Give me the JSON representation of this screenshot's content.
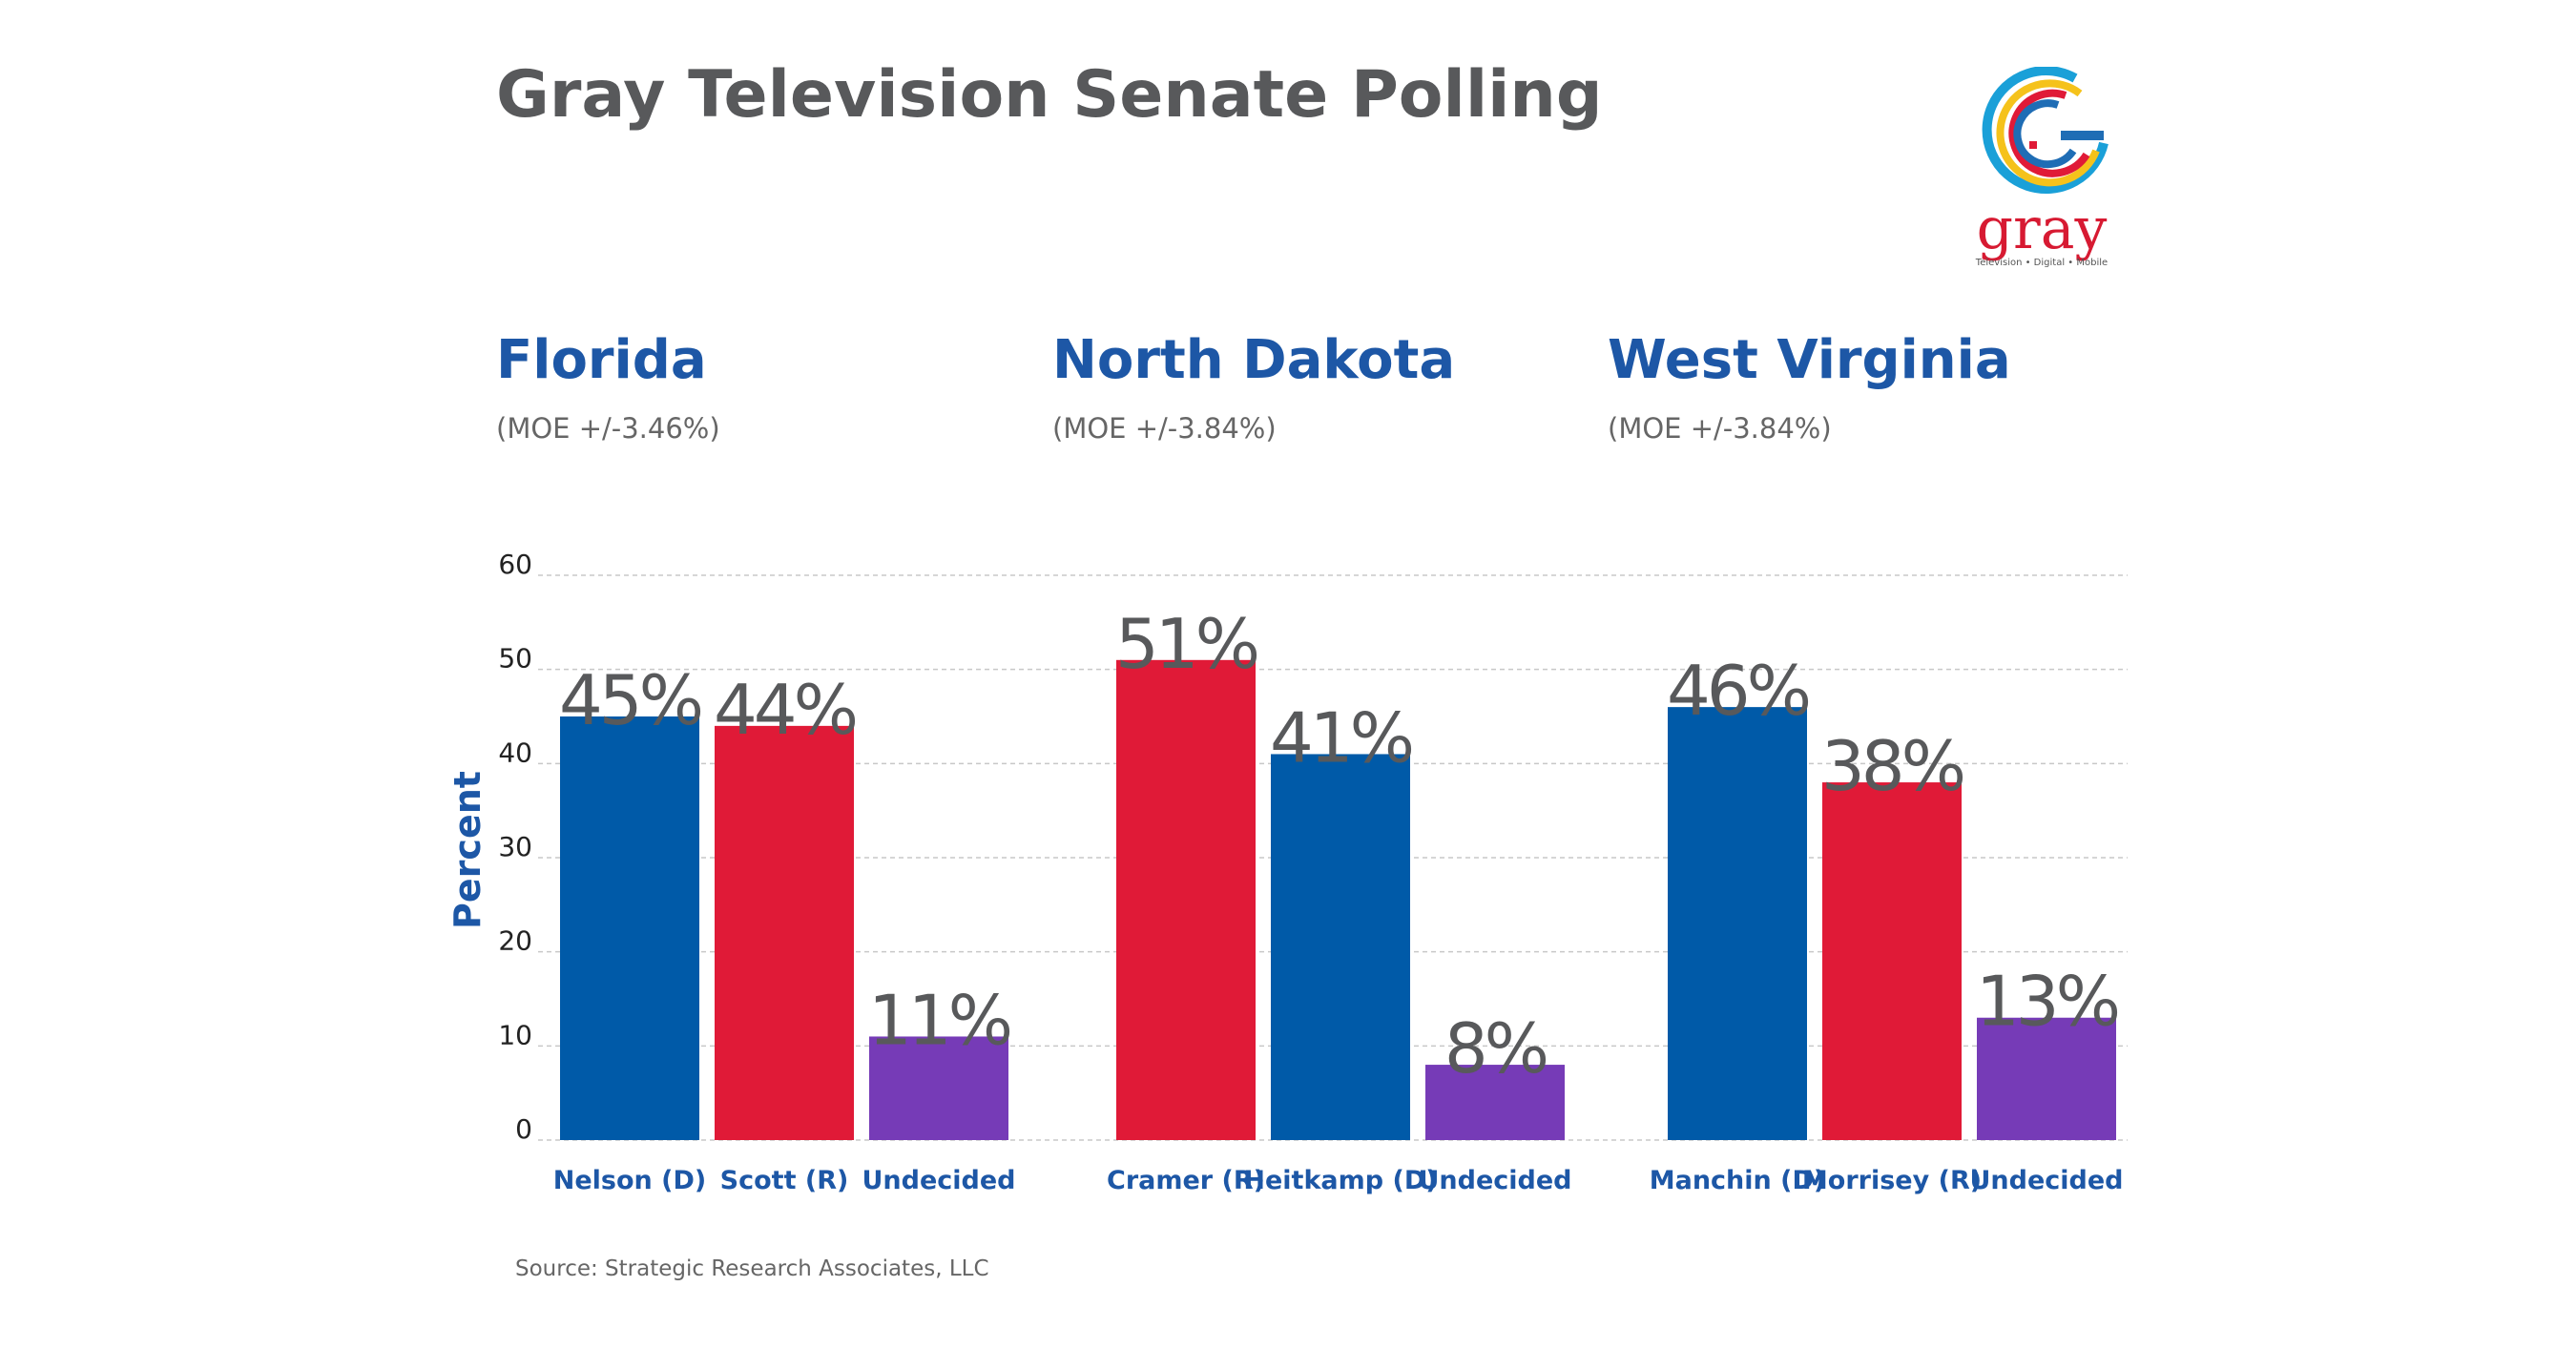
{
  "title": "Gray Television Senate Polling",
  "source": "Source: Strategic Research Associates, LLC",
  "logo": {
    "word": "gray",
    "tagline": "Television • Digital • Mobile"
  },
  "colors": {
    "democrat": "#005aa8",
    "republican": "#e01a37",
    "undecided": "#763bb7",
    "label_text": "#58595b",
    "state_blue": "#1d57a6"
  },
  "groups": [
    {
      "state": "Florida",
      "moe": "(MOE +/-3.46%)"
    },
    {
      "state": "North Dakota",
      "moe": "(MOE +/-3.84%)"
    },
    {
      "state": "West Virginia",
      "moe": "(MOE +/-3.84%)"
    }
  ],
  "chart_data": {
    "type": "bar",
    "title": "Gray Television Senate Polling",
    "ylabel": "Percent",
    "ylim": [
      0,
      60
    ],
    "yticks": [
      "0",
      "10",
      "20",
      "30",
      "40",
      "50",
      "60"
    ],
    "grid": true,
    "groups": [
      {
        "name": "Florida",
        "categories": [
          "Nelson (D)",
          "Scott (R)",
          "Undecided"
        ],
        "values": [
          45,
          44,
          11
        ],
        "labels": [
          "45%",
          "44%",
          "11%"
        ],
        "parties": [
          "democrat",
          "republican",
          "undecided"
        ]
      },
      {
        "name": "North Dakota",
        "categories": [
          "Cramer (R)",
          "Heitkamp (D)",
          "Undecided"
        ],
        "values": [
          51,
          41,
          8
        ],
        "labels": [
          "51%",
          "41%",
          "8%"
        ],
        "parties": [
          "republican",
          "democrat",
          "undecided"
        ]
      },
      {
        "name": "West Virginia",
        "categories": [
          "Manchin (D)",
          "Morrisey (R)",
          "Undecided"
        ],
        "values": [
          46,
          38,
          13
        ],
        "labels": [
          "46%",
          "38%",
          "13%"
        ],
        "parties": [
          "democrat",
          "republican",
          "undecided"
        ]
      }
    ]
  }
}
